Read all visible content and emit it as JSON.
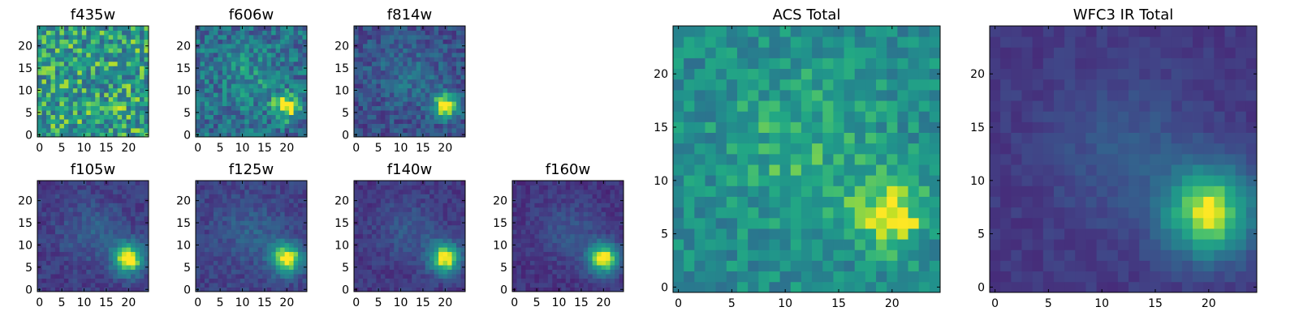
{
  "chart_data": [
    {
      "type": "heatmap",
      "title": "f435w",
      "colormap": "viridis",
      "xlim": [
        0,
        24
      ],
      "ylim": [
        0,
        24
      ],
      "xticks": [
        0,
        5,
        10,
        15,
        20
      ],
      "yticks": [
        0,
        5,
        10,
        15,
        20
      ],
      "peak": [
        19.5,
        6.5
      ],
      "peak_strength": 0.05,
      "background": 0.65,
      "noise": 0.55,
      "core_width": 2.0
    },
    {
      "type": "heatmap",
      "title": "f606w",
      "colormap": "viridis",
      "xlim": [
        0,
        24
      ],
      "ylim": [
        0,
        24
      ],
      "xticks": [
        0,
        5,
        10,
        15,
        20
      ],
      "yticks": [
        0,
        5,
        10,
        15,
        20
      ],
      "peak": [
        20,
        6.5
      ],
      "peak_strength": 0.6,
      "background": 0.45,
      "noise": 0.45,
      "core_width": 2.0
    },
    {
      "type": "heatmap",
      "title": "f814w",
      "colormap": "viridis",
      "xlim": [
        0,
        24
      ],
      "ylim": [
        0,
        24
      ],
      "xticks": [
        0,
        5,
        10,
        15,
        20
      ],
      "yticks": [
        0,
        5,
        10,
        15,
        20
      ],
      "peak": [
        20,
        6.5
      ],
      "peak_strength": 0.75,
      "background": 0.3,
      "noise": 0.3,
      "core_width": 2.0
    },
    {
      "type": "heatmap",
      "title": "f105w",
      "colormap": "viridis",
      "xlim": [
        0,
        24
      ],
      "ylim": [
        0,
        24
      ],
      "xticks": [
        0,
        5,
        10,
        15,
        20
      ],
      "yticks": [
        0,
        5,
        10,
        15,
        20
      ],
      "peak": [
        20,
        7
      ],
      "peak_strength": 0.85,
      "background": 0.22,
      "noise": 0.18,
      "core_width": 2.5
    },
    {
      "type": "heatmap",
      "title": "f125w",
      "colormap": "viridis",
      "xlim": [
        0,
        24
      ],
      "ylim": [
        0,
        24
      ],
      "xticks": [
        0,
        5,
        10,
        15,
        20
      ],
      "yticks": [
        0,
        5,
        10,
        15,
        20
      ],
      "peak": [
        20,
        7
      ],
      "peak_strength": 0.8,
      "background": 0.24,
      "noise": 0.18,
      "core_width": 2.5
    },
    {
      "type": "heatmap",
      "title": "f140w",
      "colormap": "viridis",
      "xlim": [
        0,
        24
      ],
      "ylim": [
        0,
        24
      ],
      "xticks": [
        0,
        5,
        10,
        15,
        20
      ],
      "yticks": [
        0,
        5,
        10,
        15,
        20
      ],
      "peak": [
        20,
        7
      ],
      "peak_strength": 0.82,
      "background": 0.2,
      "noise": 0.16,
      "core_width": 2.5
    },
    {
      "type": "heatmap",
      "title": "f160w",
      "colormap": "viridis",
      "xlim": [
        0,
        24
      ],
      "ylim": [
        0,
        24
      ],
      "xticks": [
        0,
        5,
        10,
        15,
        20
      ],
      "yticks": [
        0,
        5,
        10,
        15,
        20
      ],
      "peak": [
        20,
        7
      ],
      "peak_strength": 0.85,
      "background": 0.18,
      "noise": 0.15,
      "core_width": 2.5
    },
    {
      "type": "heatmap",
      "title": "ACS Total",
      "colormap": "viridis",
      "xlim": [
        0,
        24
      ],
      "ylim": [
        0,
        24
      ],
      "xticks": [
        0,
        5,
        10,
        15,
        20
      ],
      "yticks": [
        0,
        5,
        10,
        15,
        20
      ],
      "peak": [
        20,
        7
      ],
      "peak_strength": 0.4,
      "background": 0.6,
      "noise": 0.3,
      "core_width": 2.2
    },
    {
      "type": "heatmap",
      "title": "WFC3 IR Total",
      "colormap": "viridis",
      "xlim": [
        0,
        24
      ],
      "ylim": [
        0,
        24
      ],
      "xticks": [
        0,
        5,
        10,
        15,
        20
      ],
      "yticks": [
        0,
        5,
        10,
        15,
        20
      ],
      "peak": [
        20,
        7
      ],
      "peak_strength": 0.78,
      "background": 0.2,
      "noise": 0.1,
      "core_width": 3.0
    }
  ]
}
